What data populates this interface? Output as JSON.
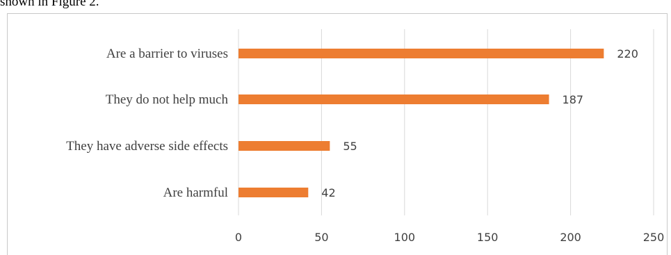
{
  "page": {
    "top_text": "shown in Figure 2."
  },
  "colors": {
    "bar": "#ed7d31",
    "grid": "#d9d9d9",
    "text": "#404040"
  },
  "chart_data": {
    "type": "bar",
    "orientation": "horizontal",
    "categories": [
      "Are a barrier to viruses",
      "They do not help much",
      "They have adverse side effects",
      "Are harmful"
    ],
    "values": [
      220,
      187,
      55,
      42
    ],
    "xlim": [
      0,
      250
    ],
    "xticks": [
      0,
      50,
      100,
      150,
      200,
      250
    ],
    "title": "",
    "xlabel": "",
    "ylabel": "",
    "grid": "vertical",
    "legend": "none",
    "data_labels": true
  }
}
